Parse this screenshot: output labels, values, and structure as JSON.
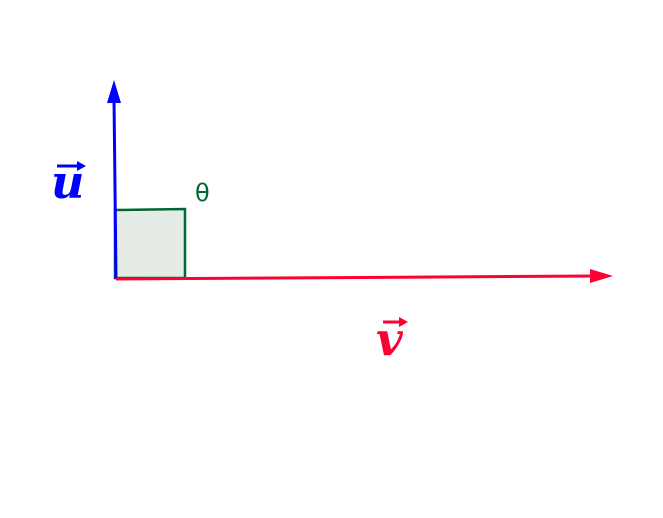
{
  "vectors": {
    "u": {
      "label": "u",
      "color": "#0000ff"
    },
    "v": {
      "label": "v",
      "color": "#ff0033"
    }
  },
  "angle": {
    "label": "θ",
    "color": "#006633",
    "fill": "#e5ece6",
    "degrees": 90
  }
}
